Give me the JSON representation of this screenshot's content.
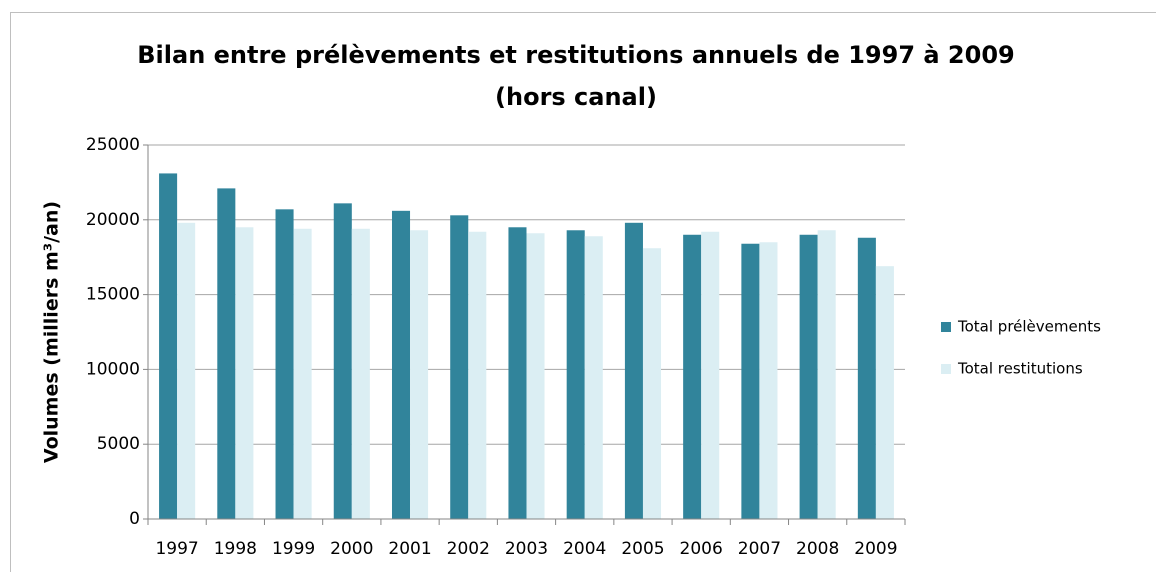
{
  "chart_data": {
    "type": "bar",
    "title": [
      "Bilan entre prélèvements et restitutions annuels de 1997 à 2009",
      "(hors canal)"
    ],
    "y_label": "Volumes (milliers m³/an)",
    "categories": [
      "1997",
      "1998",
      "1999",
      "2000",
      "2001",
      "2002",
      "2003",
      "2004",
      "2005",
      "2006",
      "2007",
      "2008",
      "2009"
    ],
    "series": [
      {
        "name": "Total prélèvements",
        "color": "#31849b",
        "values": [
          23100,
          22100,
          20700,
          21100,
          20600,
          20300,
          19500,
          19300,
          19800,
          19000,
          18400,
          19000,
          18800
        ]
      },
      {
        "name": "Total restitutions",
        "color": "#dbeef3",
        "values": [
          19800,
          19500,
          19400,
          19400,
          19300,
          19200,
          19100,
          18900,
          18100,
          19200,
          18500,
          19300,
          16900
        ]
      }
    ],
    "ylim": [
      0,
      25000
    ],
    "yticks": [
      0,
      5000,
      10000,
      15000,
      20000,
      25000
    ],
    "grid": true,
    "legend": "right"
  }
}
